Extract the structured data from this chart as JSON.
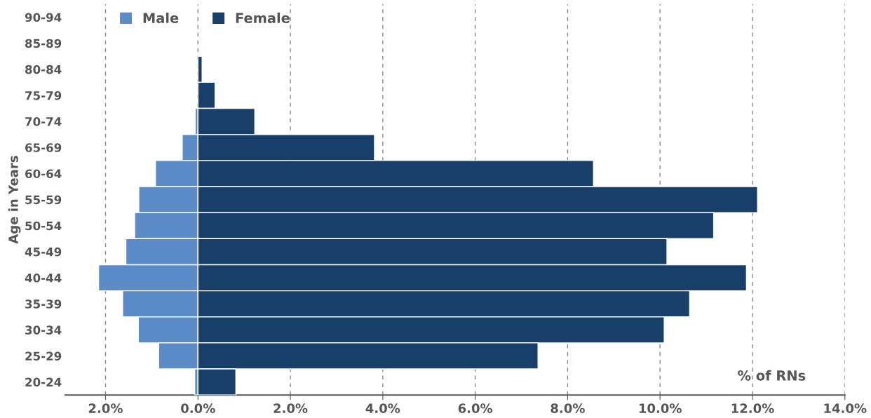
{
  "chart_data": {
    "type": "bar",
    "orientation": "horizontal",
    "xlabel": "% of RNs",
    "ylabel": "Age in Years",
    "categories": [
      "90-94",
      "85-89",
      "80-84",
      "75-79",
      "70-74",
      "65-69",
      "60-64",
      "55-59",
      "50-54",
      "45-49",
      "40-44",
      "35-39",
      "30-34",
      "25-29",
      "20-24"
    ],
    "series": [
      {
        "name": "Male",
        "color": "#5b8cc8",
        "values": [
          0,
          0,
          0,
          0,
          -0.06,
          -0.34,
          -0.92,
          -1.28,
          -1.37,
          -1.56,
          -2.15,
          -1.63,
          -1.29,
          -0.85,
          -0.07
        ]
      },
      {
        "name": "Female",
        "color": "#173f69",
        "values": [
          0,
          0,
          0.09,
          0.37,
          1.23,
          3.82,
          8.56,
          12.11,
          11.16,
          10.15,
          11.87,
          10.64,
          10.09,
          7.36,
          0.82
        ]
      }
    ],
    "xlim": [
      -2.87,
      14
    ],
    "xticks": [
      {
        "value": -2,
        "label": "2.0%"
      },
      {
        "value": 0,
        "label": "0.0%"
      },
      {
        "value": 2,
        "label": "2.0%"
      },
      {
        "value": 4,
        "label": "4.0%"
      },
      {
        "value": 6,
        "label": "6.0%"
      },
      {
        "value": 8,
        "label": "8.0%"
      },
      {
        "value": 10,
        "label": "10.0%"
      },
      {
        "value": 12,
        "label": "12.0%"
      },
      {
        "value": 14,
        "label": "14.0%"
      }
    ],
    "stacked": true,
    "grid": "x",
    "legend": "top left"
  }
}
